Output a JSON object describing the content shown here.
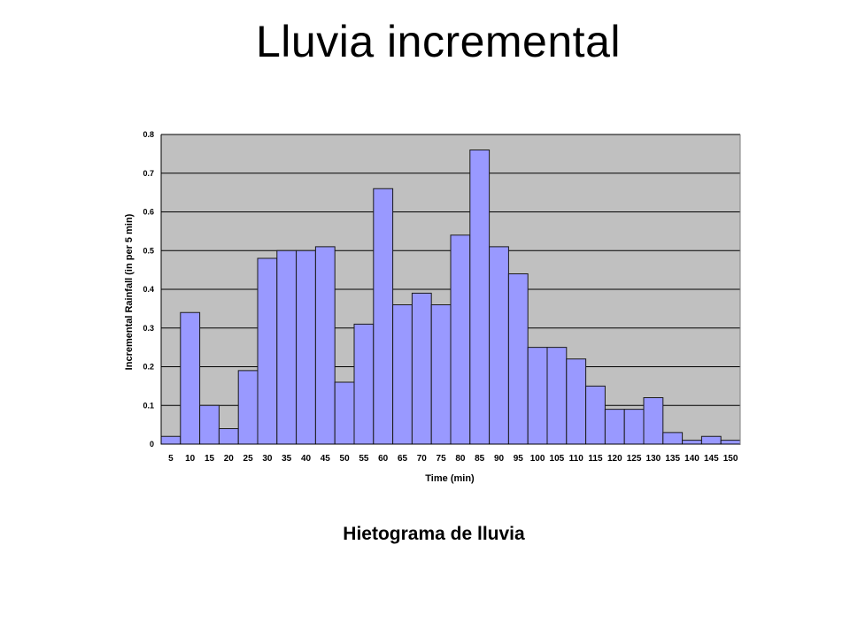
{
  "slide": {
    "title": "Lluvia incremental",
    "caption": "Hietograma de lluvia"
  },
  "chart_data": {
    "type": "bar",
    "xlabel": "Time (min)",
    "ylabel": "Incremental Rainfall (in per 5 min)",
    "ylim": [
      0,
      0.8
    ],
    "yticks": [
      "0",
      "0.1",
      "0.2",
      "0.3",
      "0.4",
      "0.5",
      "0.6",
      "0.7",
      "0.8"
    ],
    "grid": true,
    "categories": [
      "5",
      "10",
      "15",
      "20",
      "25",
      "30",
      "35",
      "40",
      "45",
      "50",
      "55",
      "60",
      "65",
      "70",
      "75",
      "80",
      "85",
      "90",
      "95",
      "100",
      "105",
      "110",
      "115",
      "120",
      "125",
      "130",
      "135",
      "140",
      "145",
      "150"
    ],
    "values": [
      0.02,
      0.34,
      0.1,
      0.04,
      0.19,
      0.48,
      0.5,
      0.5,
      0.51,
      0.16,
      0.31,
      0.66,
      0.36,
      0.39,
      0.36,
      0.54,
      0.76,
      0.51,
      0.44,
      0.25,
      0.25,
      0.22,
      0.15,
      0.09,
      0.09,
      0.12,
      0.03,
      0.01,
      0.02,
      0.01
    ],
    "colors": {
      "bar_fill": "#9999ff",
      "bar_stroke": "#1a1a1a",
      "plot_bg": "#c0c0c0",
      "grid": "#000000"
    }
  }
}
